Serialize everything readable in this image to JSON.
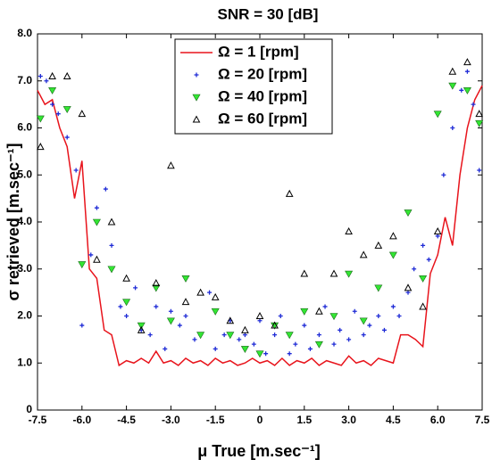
{
  "chart_data": {
    "type": "scatter",
    "title": "SNR = 30 [dB]",
    "xlabel": "μ True [m.sec⁻¹]",
    "ylabel": "σ retrieved [m.sec⁻¹]",
    "xlim": [
      -7.5,
      7.5
    ],
    "xticks": [
      -7.5,
      {
        "value": -6,
        "label": "-6.0"
      },
      -4.5,
      {
        "value": -3,
        "label": "-3.0"
      },
      -1.5,
      0,
      1.5,
      {
        "value": 3,
        "label": "3.0"
      },
      4.5,
      {
        "value": 6,
        "label": "6.0"
      },
      7.5
    ],
    "ylim": [
      0,
      8
    ],
    "yticks": [
      0,
      {
        "value": 1,
        "label": "1.0"
      },
      {
        "value": 2,
        "label": "2.0"
      },
      {
        "value": 3,
        "label": "3.0"
      },
      {
        "value": 4,
        "label": "4.0"
      },
      {
        "value": 5,
        "label": "5.0"
      },
      {
        "value": 6,
        "label": "6.0"
      },
      {
        "value": 7,
        "label": "7.0"
      },
      {
        "value": 8,
        "label": "8.0"
      }
    ],
    "legend": "top-center",
    "series": [
      {
        "name": "Ω = 1 [rpm]",
        "color": "#e8141c",
        "marker": "line",
        "x": [
          -7.5,
          -7.25,
          -7.0,
          -6.75,
          -6.5,
          -6.25,
          -6.0,
          -5.75,
          -5.5,
          -5.25,
          -5.0,
          -4.75,
          -4.5,
          -4.25,
          -4.0,
          -3.75,
          -3.5,
          -3.25,
          -3.0,
          -2.75,
          -2.5,
          -2.25,
          -2.0,
          -1.75,
          -1.5,
          -1.25,
          -1.0,
          -0.75,
          -0.5,
          -0.25,
          0,
          0.25,
          0.5,
          0.75,
          1.0,
          1.25,
          1.5,
          1.75,
          2.0,
          2.25,
          2.5,
          2.75,
          3.0,
          3.25,
          3.5,
          3.75,
          4.0,
          4.25,
          4.5,
          4.75,
          5.0,
          5.25,
          5.5,
          5.75,
          6.0,
          6.25,
          6.5,
          6.75,
          7.0,
          7.25,
          7.5
        ],
        "values": [
          6.8,
          6.5,
          6.6,
          6.0,
          5.6,
          4.5,
          5.3,
          3.0,
          2.8,
          1.7,
          1.6,
          0.95,
          1.05,
          1.0,
          1.1,
          1.0,
          1.25,
          1.0,
          1.05,
          0.95,
          1.1,
          1.0,
          1.05,
          0.95,
          1.1,
          1.0,
          1.05,
          0.95,
          1.0,
          1.1,
          1.0,
          1.05,
          0.95,
          1.1,
          0.95,
          1.05,
          1.0,
          1.1,
          0.95,
          1.05,
          1.0,
          0.95,
          1.15,
          1.0,
          1.05,
          0.95,
          1.1,
          1.05,
          1.0,
          1.6,
          1.6,
          1.5,
          1.35,
          2.9,
          3.3,
          4.1,
          3.5,
          5.0,
          6.0,
          6.6,
          6.9
        ]
      },
      {
        "name": "Ω = 20 [rpm]",
        "color": "#1f2bd6",
        "marker": "plus",
        "x": [
          -7.4,
          -7.2,
          -7.0,
          -6.8,
          -6.5,
          -6.2,
          -6.0,
          -5.7,
          -5.5,
          -5.2,
          -5.0,
          -4.7,
          -4.5,
          -4.2,
          -4.0,
          -3.7,
          -3.5,
          -3.2,
          -3.0,
          -2.7,
          -2.5,
          -2.2,
          -2.0,
          -1.7,
          -1.5,
          -1.2,
          -1.0,
          -0.7,
          -0.5,
          -0.2,
          0,
          0.2,
          0.5,
          0.7,
          1.0,
          1.2,
          1.5,
          1.7,
          2.0,
          2.2,
          2.5,
          2.7,
          3.0,
          3.2,
          3.5,
          3.7,
          4.0,
          4.2,
          4.5,
          4.7,
          5.0,
          5.2,
          5.5,
          5.7,
          6.0,
          6.2,
          6.5,
          6.8,
          7.0,
          7.2,
          7.4
        ],
        "values": [
          7.1,
          7.0,
          6.5,
          6.3,
          5.8,
          5.1,
          1.8,
          3.3,
          4.3,
          4.7,
          3.5,
          2.2,
          2.0,
          2.6,
          1.7,
          1.6,
          2.2,
          1.3,
          2.1,
          1.8,
          2.0,
          1.5,
          1.6,
          2.5,
          1.3,
          1.6,
          1.9,
          1.5,
          1.6,
          1.4,
          1.9,
          1.2,
          1.6,
          2.0,
          1.2,
          1.4,
          1.8,
          1.3,
          1.6,
          2.2,
          1.4,
          1.7,
          1.5,
          2.1,
          1.6,
          1.8,
          2.0,
          1.7,
          2.2,
          2.0,
          2.5,
          3.0,
          3.5,
          3.2,
          3.7,
          5.0,
          6.0,
          6.8,
          7.2,
          6.5,
          5.1
        ]
      },
      {
        "name": "Ω = 40 [rpm]",
        "color": "#33e633",
        "marker": "tri-down",
        "x": [
          -7.4,
          -7.0,
          -6.5,
          -6.0,
          -5.5,
          -5.0,
          -4.5,
          -4.0,
          -3.5,
          -3.0,
          -2.5,
          -2.0,
          -1.5,
          -1.0,
          -0.5,
          0,
          0.5,
          1.0,
          1.5,
          2.0,
          2.5,
          3.0,
          3.5,
          4.0,
          4.5,
          5.0,
          5.5,
          6.0,
          6.5,
          7.0,
          7.4
        ],
        "values": [
          6.2,
          6.8,
          6.4,
          3.1,
          4.0,
          3.0,
          2.3,
          1.8,
          2.6,
          1.9,
          2.8,
          1.6,
          2.1,
          1.6,
          1.3,
          1.2,
          1.8,
          1.6,
          2.1,
          1.4,
          2.0,
          2.9,
          1.9,
          2.6,
          3.3,
          4.2,
          2.8,
          6.3,
          6.9,
          6.8,
          6.1
        ]
      },
      {
        "name": "Ω = 60 [rpm]",
        "color": "#000000",
        "marker": "tri-up",
        "x": [
          -7.4,
          -7.0,
          -6.5,
          -6.0,
          -5.5,
          -5.0,
          -4.5,
          -4.0,
          -3.5,
          -3.0,
          -2.5,
          -2.0,
          -1.5,
          -1.0,
          -0.5,
          0,
          0.5,
          1.0,
          1.5,
          2.0,
          2.5,
          3.0,
          3.5,
          4.0,
          4.5,
          5.0,
          5.5,
          6.0,
          6.5,
          7.0,
          7.4
        ],
        "values": [
          5.6,
          7.1,
          7.1,
          6.3,
          3.2,
          4.0,
          2.8,
          1.7,
          2.7,
          5.2,
          2.3,
          2.5,
          2.4,
          1.9,
          1.7,
          2.0,
          1.8,
          4.6,
          2.9,
          2.1,
          2.9,
          3.8,
          3.3,
          3.5,
          3.7,
          2.6,
          2.2,
          3.8,
          7.2,
          7.4,
          6.3
        ]
      }
    ]
  }
}
